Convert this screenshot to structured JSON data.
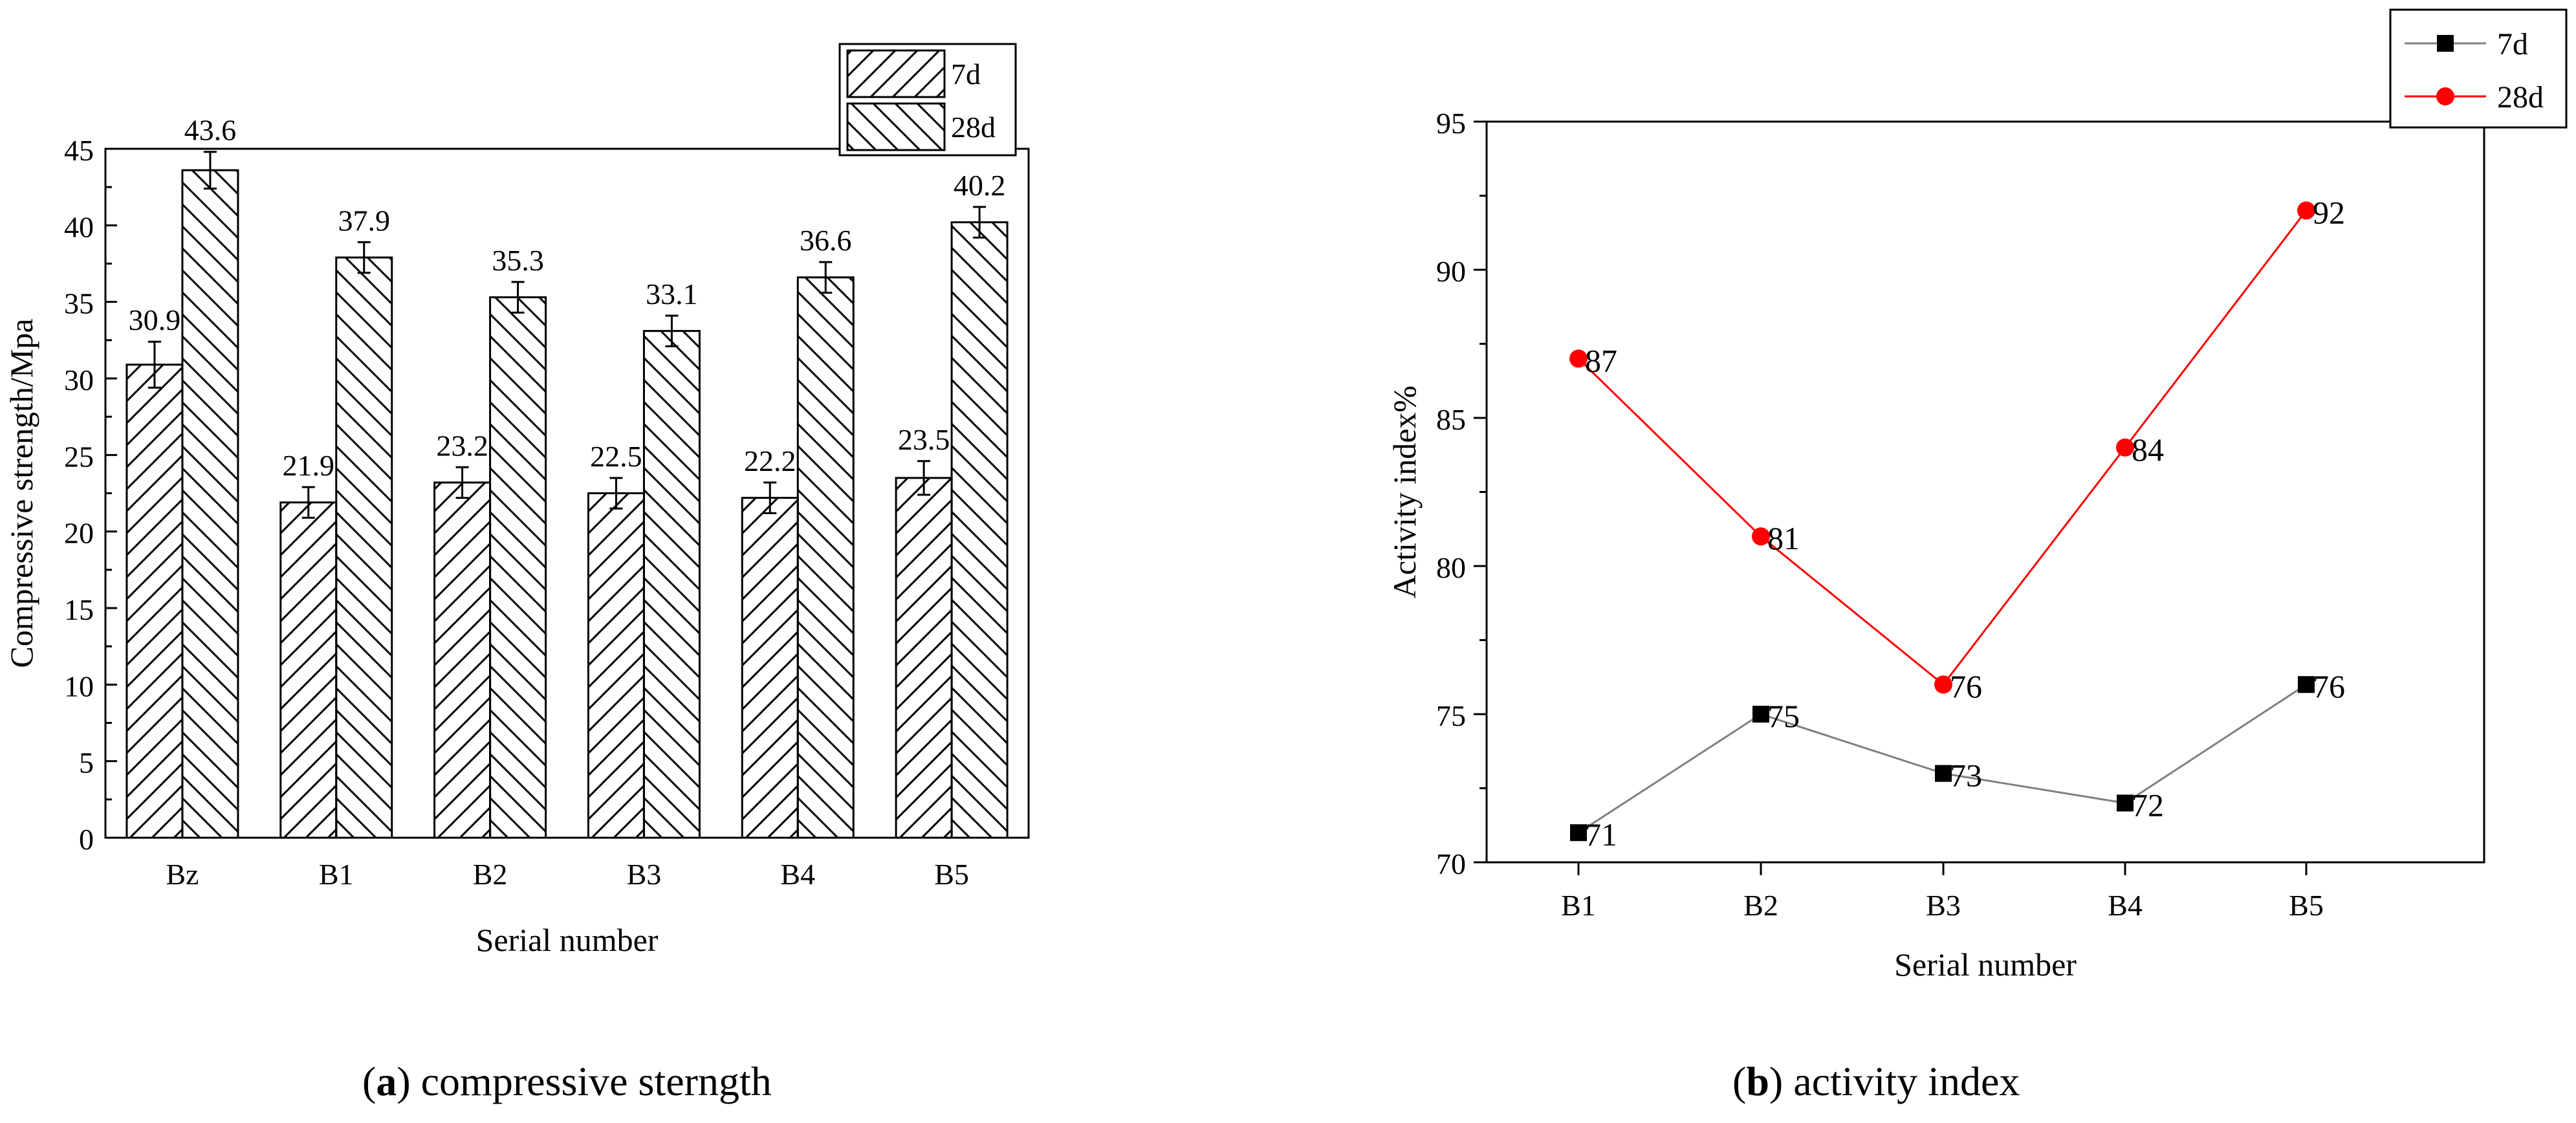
{
  "chart_data": [
    {
      "type": "bar",
      "categories": [
        "Bz",
        "B1",
        "B2",
        "B3",
        "B4",
        "B5"
      ],
      "series": [
        {
          "name": "7d",
          "values": [
            30.9,
            21.9,
            23.2,
            22.5,
            22.2,
            23.5
          ],
          "errors": [
            1.5,
            1.0,
            1.0,
            1.0,
            1.0,
            1.1
          ],
          "hatch": "forward"
        },
        {
          "name": "28d",
          "values": [
            43.6,
            37.9,
            35.3,
            33.1,
            36.6,
            40.2
          ],
          "errors": [
            1.2,
            1.0,
            1.0,
            1.0,
            1.0,
            1.0
          ],
          "hatch": "backward"
        }
      ],
      "data_labels": [
        [
          "30.9",
          "21.9",
          "23.2",
          "22.5",
          "22.2",
          "23.5"
        ],
        [
          "43.6",
          "37.9",
          "35.3",
          "33.1",
          "36.6",
          "40.2"
        ]
      ],
      "xlabel": "Serial number",
      "ylabel": "Compressive strength/Mpa",
      "ylim": [
        0,
        45
      ],
      "yticks": [
        0,
        5,
        10,
        15,
        20,
        25,
        30,
        35,
        40,
        45
      ],
      "grid": false,
      "legend_position": "top-right",
      "caption_letter": "a",
      "caption_text": "compressive sterngth"
    },
    {
      "type": "line",
      "categories": [
        "B1",
        "B2",
        "B3",
        "B4",
        "B5"
      ],
      "series": [
        {
          "name": "7d",
          "values": [
            71,
            75,
            73,
            72,
            76
          ],
          "color": "#808080",
          "marker": "square",
          "marker_color": "#000000"
        },
        {
          "name": "28d",
          "values": [
            87,
            81,
            76,
            84,
            92
          ],
          "color": "#ff0000",
          "marker": "circle",
          "marker_color": "#ff0000"
        }
      ],
      "data_labels": [
        [
          "71",
          "75",
          "73",
          "72",
          "76"
        ],
        [
          "87",
          "81",
          "76",
          "84",
          "92"
        ]
      ],
      "xlabel": "Serial number",
      "ylabel": "Activity index%",
      "ylim": [
        70,
        95
      ],
      "yticks": [
        70,
        75,
        80,
        85,
        90,
        95
      ],
      "grid": false,
      "legend_position": "top-right",
      "caption_letter": "b",
      "caption_text": "activity index"
    }
  ]
}
